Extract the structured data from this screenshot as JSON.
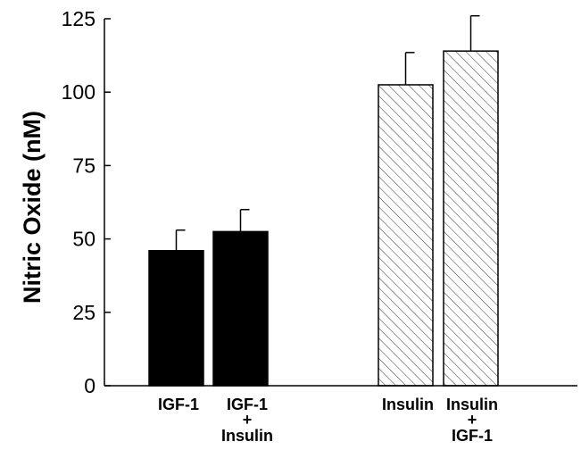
{
  "chart_data": {
    "type": "bar",
    "title": "",
    "xlabel": "",
    "ylabel": "Nitric Oxide (nM)",
    "ylim": [
      0,
      125
    ],
    "yticks": [
      0,
      25,
      50,
      75,
      100,
      125
    ],
    "grid": false,
    "categories": [
      {
        "lines": [
          "IGF-1"
        ]
      },
      {
        "lines": [
          "IGF-1",
          "+",
          "Insulin"
        ]
      },
      {
        "lines": [
          "Insulin"
        ]
      },
      {
        "lines": [
          "Insulin",
          "+",
          "IGF-1"
        ]
      }
    ],
    "values": [
      46,
      52.5,
      102.5,
      114
    ],
    "errors": [
      7,
      7.5,
      11,
      12
    ],
    "fills": [
      "solid",
      "solid",
      "hatched",
      "hatched"
    ],
    "colors": {
      "solid": "#000000",
      "hatched_fill": "#ffffff",
      "hatch_line": "#000000"
    }
  }
}
